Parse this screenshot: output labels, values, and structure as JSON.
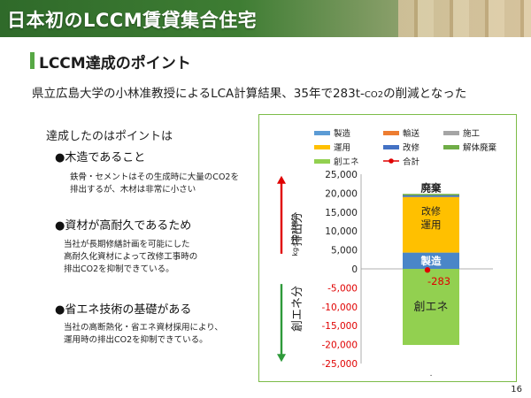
{
  "header": {
    "title": "日本初のLCCM賃貸集合住宅"
  },
  "section": {
    "title": "LCCM達成のポイント"
  },
  "lead": {
    "text": "県立広島大学の小林准教授によるLCA計算結果、35年で283t-",
    "sub": "CO2",
    "tail": "の削減となった"
  },
  "points_heading": "達成したのはポイントは",
  "points": [
    {
      "title": "●木造であること",
      "body": [
        "鉄骨・セメントはその生成時に大量のCO2を",
        "排出するが、木材は非常に小さい"
      ]
    },
    {
      "title": "●資材が高耐久であるため",
      "body": [
        "当社が長期修繕計画を可能にした",
        "高耐久化資材によって改修工事時の",
        "排出CO2を抑制できている。"
      ]
    },
    {
      "title": "●省エネ技術の基礎がある",
      "body": [
        "当社の高断熱化・省エネ資材採用により、",
        "運用時の排出CO2を抑制できている。"
      ]
    }
  ],
  "page_number": "16",
  "chart_data": {
    "type": "bar",
    "stacked": true,
    "ylabel": "kg-CO2/棟年",
    "ylim": [
      -25000,
      25000
    ],
    "yticks": [
      "25,000",
      "20,000",
      "15,000",
      "10,000",
      "5,000",
      "0",
      "-5,000",
      "-10,000",
      "-15,000",
      "-20,000",
      "-25,000"
    ],
    "ytick_values": [
      25000,
      20000,
      15000,
      10000,
      5000,
      0,
      -5000,
      -10000,
      -15000,
      -20000,
      -25000
    ],
    "x_tick": ".",
    "legend": [
      {
        "name": "製造",
        "color": "#5b9bd5"
      },
      {
        "name": "輸送",
        "color": "#ed7d31"
      },
      {
        "name": "施工",
        "color": "#a5a5a5"
      },
      {
        "name": "運用",
        "color": "#ffc000"
      },
      {
        "name": "改修",
        "color": "#4472c4"
      },
      {
        "name": "解体廃棄",
        "color": "#70ad47"
      },
      {
        "name": "創エネ",
        "color": "#92d050"
      },
      {
        "name": "合計",
        "color": "#e00000"
      }
    ],
    "series": [
      {
        "name": "製造",
        "value": 4300,
        "color": "#4a86c8"
      },
      {
        "name": "運用",
        "value": 14700,
        "color": "#ffc000"
      },
      {
        "name": "改修",
        "value": 400,
        "color": "#4472c4"
      },
      {
        "name": "解体廃棄",
        "value": 400,
        "color": "#70ad47"
      },
      {
        "name": "創エネ",
        "value": -20100,
        "color": "#92d050"
      }
    ],
    "bar_labels": [
      "製造",
      "運用",
      "改修",
      "廃棄",
      "創エネ"
    ],
    "total": {
      "name": "合計",
      "value": -283,
      "label": "-283",
      "color": "#e00000"
    },
    "side_labels": {
      "emission": "排出分",
      "generation": "創エネ分"
    },
    "arrow_colors": {
      "up": "#e00000",
      "down": "#2e9a3a"
    }
  }
}
